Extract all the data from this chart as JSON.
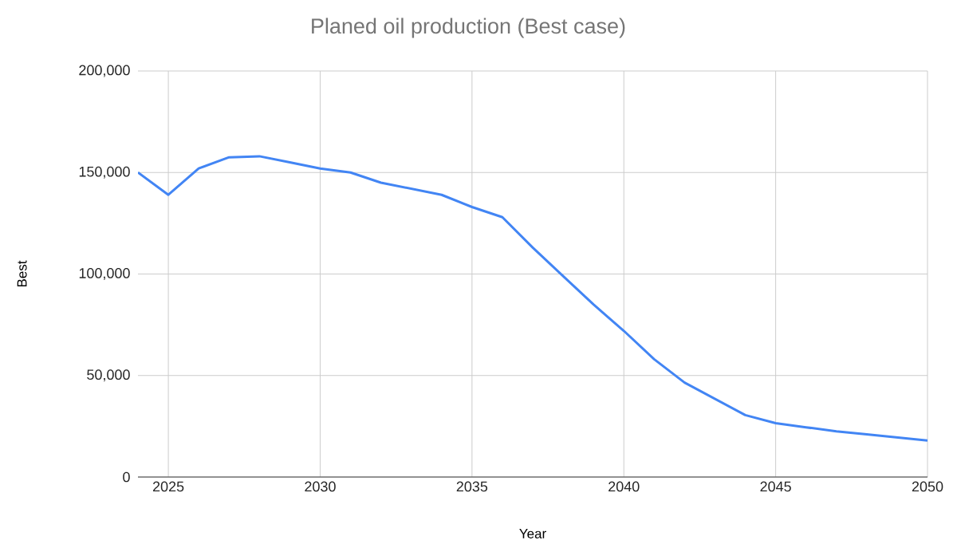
{
  "chart_data": {
    "type": "line",
    "title": "Planed oil production (Best case)",
    "xlabel": "Year",
    "ylabel": "Best",
    "x": [
      2024,
      2025,
      2026,
      2027,
      2028,
      2029,
      2030,
      2031,
      2032,
      2033,
      2034,
      2035,
      2036,
      2037,
      2038,
      2039,
      2040,
      2041,
      2042,
      2043,
      2044,
      2045,
      2046,
      2047,
      2048,
      2049,
      2050
    ],
    "values": [
      150000,
      139000,
      152000,
      157500,
      158000,
      155000,
      152000,
      150000,
      145000,
      142000,
      139000,
      133000,
      128000,
      113000,
      99000,
      85000,
      72000,
      58000,
      46500,
      38500,
      30500,
      26500,
      24500,
      22500,
      21000,
      19500,
      18000
    ],
    "color": "#4285f4",
    "xlim": [
      2024,
      2050
    ],
    "ylim": [
      0,
      200000
    ],
    "xticks": [
      2025,
      2030,
      2035,
      2040,
      2045,
      2050
    ],
    "yticks": [
      {
        "value": 0,
        "label": "0"
      },
      {
        "value": 50000,
        "label": "50,000"
      },
      {
        "value": 100000,
        "label": "100,000"
      },
      {
        "value": 150000,
        "label": "150,000"
      },
      {
        "value": 200000,
        "label": "200,000"
      }
    ],
    "grid": true
  }
}
